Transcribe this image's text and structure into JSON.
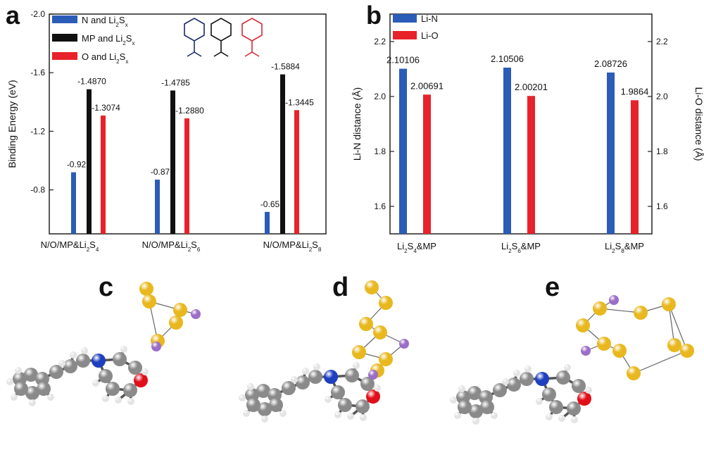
{
  "panels": {
    "a": "a",
    "b": "b",
    "c": "c",
    "d": "d",
    "e": "e"
  },
  "chart_data": [
    {
      "panel": "a",
      "type": "bar",
      "ylabel": "Binding Energy (eV)",
      "yaxis": {
        "min": -0.5,
        "max": -2.0,
        "ticks": [
          "-0.8",
          "-1.2",
          "-1.6",
          "-2.0"
        ],
        "tick_values": [
          -0.8,
          -1.2,
          -1.6,
          -2.0
        ]
      },
      "categories": [
        {
          "name": "N/O/MP&Li2S4",
          "pre": "N/O/MP&Li",
          "sub1": "2",
          "mid": "S",
          "sub2": "4"
        },
        {
          "name": "N/O/MP&Li2S6",
          "pre": "N/O/MP&Li",
          "sub1": "2",
          "mid": "S",
          "sub2": "6"
        },
        {
          "name": "N/O/MP&Li2S8",
          "pre": "N/O/MP&Li",
          "sub1": "2",
          "mid": "S",
          "sub2": "8"
        }
      ],
      "legend": [
        {
          "pre": "N and Li",
          "sub1": "2",
          "mid": "S",
          "sub2": "x",
          "color": "#2b5cb8"
        },
        {
          "pre": "MP and Li",
          "sub1": "2",
          "mid": "S",
          "sub2": "x",
          "color": "#111111"
        },
        {
          "pre": "O and Li",
          "sub1": "2",
          "mid": "S",
          "sub2": "x",
          "color": "#e8222a"
        }
      ],
      "series": [
        {
          "color": "#2b5cb8",
          "values": [
            -0.92,
            -0.87,
            -0.65
          ],
          "labels": [
            "-0.92",
            "-0.87",
            "-0.65"
          ]
        },
        {
          "color": "#111111",
          "values": [
            -1.487,
            -1.4785,
            -1.5884
          ],
          "labels": [
            "-1.4870",
            "-1.4785",
            "-1.5884"
          ]
        },
        {
          "color": "#e8222a",
          "values": [
            -1.3074,
            -1.288,
            -1.3445
          ],
          "labels": [
            "-1.3074",
            "-1.2880",
            "-1.3445"
          ]
        }
      ]
    },
    {
      "panel": "b",
      "type": "bar",
      "ylabel_left": "Li-N distance (Å)",
      "ylabel_right": "Li-O distance (Å)",
      "yaxis": {
        "min": 1.5,
        "max": 2.3,
        "ticks": [
          "1.6",
          "1.8",
          "2.0",
          "2.2"
        ],
        "tick_values": [
          1.6,
          1.8,
          2.0,
          2.2
        ]
      },
      "categories": [
        {
          "name": "Li2S4&MP",
          "pre": "Li",
          "sub1": "2",
          "mid": "S",
          "sub2": "4",
          "post": "&MP"
        },
        {
          "name": "Li2S6&MP",
          "pre": "Li",
          "sub1": "2",
          "mid": "S",
          "sub2": "6",
          "post": "&MP"
        },
        {
          "name": "Li2S8&MP",
          "pre": "Li",
          "sub1": "2",
          "mid": "S",
          "sub2": "8",
          "post": "&MP"
        }
      ],
      "legend": [
        {
          "name": "Li-N",
          "color": "#2b5cb8"
        },
        {
          "name": "Li-O",
          "color": "#e8222a"
        }
      ],
      "series": [
        {
          "name": "Li-N",
          "color": "#2b5cb8",
          "values": [
            2.10106,
            2.10506,
            2.08726
          ],
          "labels": [
            "2.10106",
            "2.10506",
            "2.08726"
          ]
        },
        {
          "name": "Li-O",
          "color": "#e8222a",
          "values": [
            2.00691,
            2.00201,
            1.9864
          ],
          "labels": [
            "2.00691",
            "2.00201",
            "1.9864"
          ]
        }
      ]
    }
  ],
  "colors": {
    "carbon": "#8a8a8a",
    "hydrogen": "#e4e4e4",
    "nitrogen": "#1f3fbf",
    "oxygen": "#e0101a",
    "sulfur": "#e8b81e",
    "lithium": "#9b6ec8",
    "bond": "#555555"
  }
}
